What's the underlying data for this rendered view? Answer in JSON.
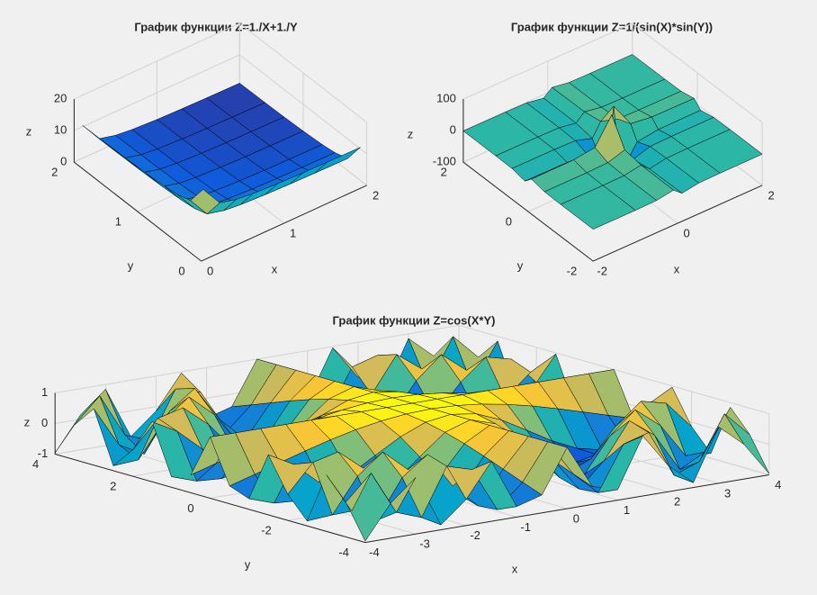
{
  "chart_data": [
    {
      "type": "surface",
      "title": "График функции Z=1./X+1./Y",
      "xlabel": "x",
      "ylabel": "y",
      "zlabel": "z",
      "x": [
        0.1,
        0.3,
        0.5,
        0.7,
        1,
        1.3,
        1.6,
        2
      ],
      "y": [
        0.1,
        0.3,
        0.5,
        0.7,
        1,
        1.3,
        1.6,
        2
      ],
      "z": [
        [
          20,
          13.33,
          12,
          11.43,
          11,
          10.77,
          10.63,
          10.5
        ],
        [
          13.33,
          6.67,
          5.33,
          4.76,
          4.33,
          4.1,
          3.96,
          3.83
        ],
        [
          12,
          5.33,
          4,
          3.43,
          3,
          2.77,
          2.63,
          2.5
        ],
        [
          11.43,
          4.76,
          3.43,
          2.86,
          2.43,
          2.2,
          2.06,
          1.93
        ],
        [
          11,
          4.33,
          3,
          2.43,
          2,
          1.77,
          1.63,
          1.5
        ],
        [
          10.77,
          4.1,
          2.77,
          2.2,
          1.77,
          1.54,
          1.4,
          1.27
        ],
        [
          10.63,
          3.96,
          2.63,
          2.06,
          1.63,
          1.4,
          1.26,
          1.13
        ],
        [
          10.5,
          3.83,
          2.5,
          1.93,
          1.5,
          1.27,
          1.13,
          1
        ]
      ],
      "xlim": [
        0,
        2
      ],
      "ylim": [
        0,
        2
      ],
      "zlim": [
        0,
        20
      ],
      "xticks": [
        0,
        1,
        2
      ],
      "yticks": [
        0,
        1,
        2
      ],
      "zticks": [
        0,
        10,
        20
      ],
      "grid": true,
      "colormap": [
        "#352a87",
        "#0f5cdd",
        "#1481d6",
        "#06a4ca",
        "#2eb7a4",
        "#87bf77",
        "#d1bb59",
        "#fec832",
        "#f9fb0e"
      ]
    },
    {
      "type": "surface",
      "title": "График функции Z=1/(sin(X)*sin(Y))",
      "xlabel": "x",
      "ylabel": "y",
      "zlabel": "z",
      "x": [
        -2,
        -1,
        -0.5,
        -0.1,
        0.1,
        0.5,
        1,
        2
      ],
      "y": [
        -2,
        -1,
        -0.5,
        -0.1,
        0.1,
        0.5,
        1,
        2
      ],
      "z": [
        [
          1.21,
          1.31,
          2.3,
          11.02,
          -11.02,
          -2.3,
          -1.31,
          -1.21
        ],
        [
          1.31,
          1.42,
          2.49,
          11.92,
          -11.92,
          -2.49,
          -1.42,
          -1.31
        ],
        [
          2.3,
          2.49,
          4.37,
          20.94,
          -20.94,
          -4.37,
          -2.49,
          -2.3
        ],
        [
          11.02,
          11.92,
          20.94,
          100.4,
          -100.4,
          -20.94,
          -11.92,
          -11.02
        ],
        [
          -11.02,
          -11.92,
          -20.94,
          -100.4,
          100.4,
          20.94,
          11.92,
          11.02
        ],
        [
          -2.3,
          -2.49,
          -4.37,
          -20.94,
          20.94,
          4.37,
          2.49,
          2.3
        ],
        [
          -1.31,
          -1.42,
          -2.49,
          -11.92,
          11.92,
          2.49,
          1.42,
          1.31
        ],
        [
          -1.21,
          -1.31,
          -2.3,
          -11.02,
          11.02,
          2.3,
          1.31,
          1.21
        ]
      ],
      "xlim": [
        -2,
        2
      ],
      "ylim": [
        -2,
        2
      ],
      "zlim": [
        -100,
        100
      ],
      "xticks": [
        -2,
        0,
        2
      ],
      "yticks": [
        -2,
        0,
        2
      ],
      "zticks": [
        -100,
        0,
        100
      ],
      "grid": true,
      "colormap": [
        "#352a87",
        "#0f5cdd",
        "#1481d6",
        "#06a4ca",
        "#2eb7a4",
        "#87bf77",
        "#d1bb59",
        "#fec832",
        "#f9fb0e"
      ]
    },
    {
      "type": "surface",
      "title": "График функции Z=cos(X*Y)",
      "xlabel": "x",
      "ylabel": "y",
      "zlabel": "z",
      "x": [
        -4,
        -3.5,
        -3,
        -2.5,
        -2,
        -1.5,
        -1,
        -0.5,
        0,
        0.5,
        1,
        1.5,
        2,
        2.5,
        3,
        3.5,
        4
      ],
      "y": [
        -4,
        -3.5,
        -3,
        -2.5,
        -2,
        -1.5,
        -1,
        -0.5,
        0,
        0.5,
        1,
        1.5,
        2,
        2.5,
        3,
        3.5,
        4
      ],
      "z": [
        [
          -0.958,
          0.137,
          0.844,
          -0.839,
          -0.146,
          0.96,
          -0.654,
          -0.416,
          1,
          -0.416,
          -0.654,
          0.96,
          -0.146,
          -0.839,
          0.844,
          0.137,
          -0.958
        ],
        [
          0.137,
          0.95,
          -0.476,
          -0.781,
          0.754,
          0.512,
          -0.936,
          -0.178,
          1,
          -0.178,
          -0.936,
          0.512,
          0.754,
          -0.781,
          -0.476,
          0.95,
          0.137
        ],
        [
          0.844,
          -0.476,
          -0.911,
          0.347,
          0.96,
          -0.211,
          -0.99,
          0.071,
          1,
          0.071,
          -0.99,
          -0.211,
          0.96,
          0.347,
          -0.911,
          -0.476,
          0.844
        ],
        [
          -0.839,
          -0.781,
          0.347,
          0.999,
          0.284,
          -0.821,
          -0.801,
          0.315,
          1,
          0.315,
          -0.801,
          -0.821,
          0.284,
          0.999,
          0.347,
          -0.781,
          -0.839
        ],
        [
          -0.146,
          0.754,
          0.96,
          0.284,
          -0.654,
          -0.99,
          -0.416,
          0.54,
          1,
          0.54,
          -0.416,
          -0.99,
          -0.654,
          0.284,
          0.96,
          0.754,
          -0.146
        ],
        [
          0.96,
          0.512,
          -0.211,
          -0.821,
          -0.99,
          -0.628,
          0.071,
          0.732,
          1,
          0.732,
          0.071,
          -0.628,
          -0.99,
          -0.821,
          -0.211,
          0.512,
          0.96
        ],
        [
          -0.654,
          -0.936,
          -0.99,
          -0.801,
          -0.416,
          0.071,
          0.54,
          0.878,
          1,
          0.878,
          0.54,
          0.071,
          -0.416,
          -0.801,
          -0.99,
          -0.936,
          -0.654
        ],
        [
          -0.416,
          -0.178,
          0.071,
          0.315,
          0.54,
          0.732,
          0.878,
          0.969,
          1,
          0.969,
          0.878,
          0.732,
          0.54,
          0.315,
          0.071,
          -0.178,
          -0.416
        ],
        [
          1,
          1,
          1,
          1,
          1,
          1,
          1,
          1,
          1,
          1,
          1,
          1,
          1,
          1,
          1,
          1,
          1
        ],
        [
          -0.416,
          -0.178,
          0.071,
          0.315,
          0.54,
          0.732,
          0.878,
          0.969,
          1,
          0.969,
          0.878,
          0.732,
          0.54,
          0.315,
          0.071,
          -0.178,
          -0.416
        ],
        [
          -0.654,
          -0.936,
          -0.99,
          -0.801,
          -0.416,
          0.071,
          0.54,
          0.878,
          1,
          0.878,
          0.54,
          0.071,
          -0.416,
          -0.801,
          -0.99,
          -0.936,
          -0.654
        ],
        [
          0.96,
          0.512,
          -0.211,
          -0.821,
          -0.99,
          -0.628,
          0.071,
          0.732,
          1,
          0.732,
          0.071,
          -0.628,
          -0.99,
          -0.821,
          -0.211,
          0.512,
          0.96
        ],
        [
          -0.146,
          0.754,
          0.96,
          0.284,
          -0.654,
          -0.99,
          -0.416,
          0.54,
          1,
          0.54,
          -0.416,
          -0.99,
          -0.654,
          0.284,
          0.96,
          0.754,
          -0.146
        ],
        [
          -0.839,
          -0.781,
          0.347,
          0.999,
          0.284,
          -0.821,
          -0.801,
          0.315,
          1,
          0.315,
          -0.801,
          -0.821,
          0.284,
          0.999,
          0.347,
          -0.781,
          -0.839
        ],
        [
          0.844,
          -0.476,
          -0.911,
          0.347,
          0.96,
          -0.211,
          -0.99,
          0.071,
          1,
          0.071,
          -0.99,
          -0.211,
          0.96,
          0.347,
          -0.911,
          -0.476,
          0.844
        ],
        [
          0.137,
          0.95,
          -0.476,
          -0.781,
          0.754,
          0.512,
          -0.936,
          -0.178,
          1,
          -0.178,
          -0.936,
          0.512,
          0.754,
          -0.781,
          -0.476,
          0.95,
          0.137
        ],
        [
          -0.958,
          0.137,
          0.844,
          -0.839,
          -0.146,
          0.96,
          -0.654,
          -0.416,
          1,
          -0.416,
          -0.654,
          0.96,
          -0.146,
          -0.839,
          0.844,
          0.137,
          -0.958
        ]
      ],
      "xlim": [
        -4,
        4
      ],
      "ylim": [
        -4,
        4
      ],
      "zlim": [
        -1,
        1
      ],
      "xticks": [
        -4,
        -3,
        -2,
        -1,
        0,
        1,
        2,
        3,
        4
      ],
      "yticks": [
        -4,
        -2,
        0,
        2,
        4
      ],
      "zticks": [
        -1,
        0,
        1
      ],
      "grid": true,
      "colormap": [
        "#352a87",
        "#0f5cdd",
        "#1481d6",
        "#06a4ca",
        "#2eb7a4",
        "#87bf77",
        "#d1bb59",
        "#fec832",
        "#f9fb0e"
      ]
    }
  ]
}
